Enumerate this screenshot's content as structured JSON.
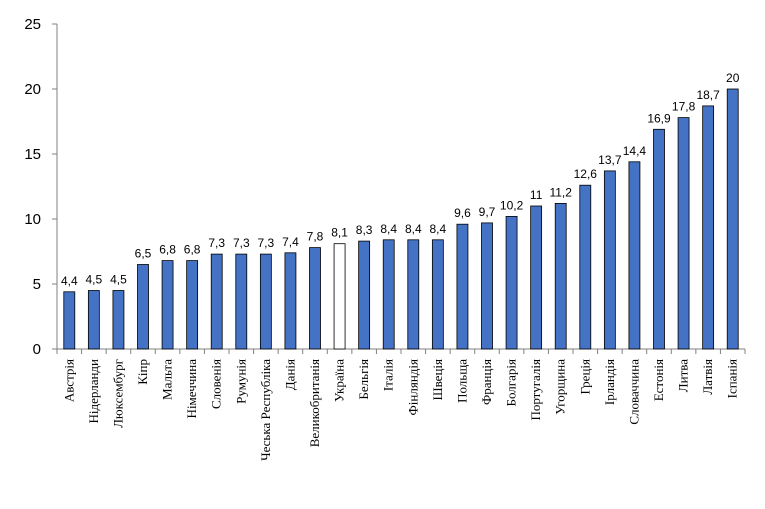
{
  "chart_data": {
    "type": "bar",
    "title": "",
    "xlabel": "",
    "ylabel": "",
    "ylim": [
      0,
      25
    ],
    "yticks": [
      0,
      5,
      10,
      15,
      20,
      25
    ],
    "grid": false,
    "categories": [
      "Австрія",
      "Нідерланди",
      "Люксембург",
      "Кіпр",
      "Мальта",
      "Німеччина",
      "Словенія",
      "Румунія",
      "Чеська Республіка",
      "Данія",
      "Великобританія",
      "Україна",
      "Бельгія",
      "Італія",
      "Фінляндія",
      "Швеція",
      "Польща",
      "Франція",
      "Болгарія",
      "Португалія",
      "Угорщина",
      "Греція",
      "Ірландія",
      "Словаччина",
      "Естонія",
      "Литва",
      "Латвія",
      "Іспанія"
    ],
    "values": [
      4.4,
      4.5,
      4.5,
      6.5,
      6.8,
      6.8,
      7.3,
      7.3,
      7.3,
      7.4,
      7.8,
      8.1,
      8.3,
      8.4,
      8.4,
      8.4,
      9.6,
      9.7,
      10.2,
      11,
      11.2,
      12.6,
      13.7,
      14.4,
      16.9,
      17.8,
      18.7,
      20
    ],
    "value_labels": [
      "4,4",
      "4,5",
      "4,5",
      "6,5",
      "6,8",
      "6,8",
      "7,3",
      "7,3",
      "7,3",
      "7,4",
      "7,8",
      "8,1",
      "8,3",
      "8,4",
      "8,4",
      "8,4",
      "9,6",
      "9,7",
      "10,2",
      "11",
      "11,2",
      "12,6",
      "13,7",
      "14,4",
      "16,9",
      "17,8",
      "18,7",
      "20"
    ],
    "highlight_category": "Україна",
    "colors": {
      "bar_fill": "#4472C4",
      "bar_stroke": "#000000",
      "highlight_fill": "#FFFFFF",
      "axis": "#808080"
    }
  }
}
